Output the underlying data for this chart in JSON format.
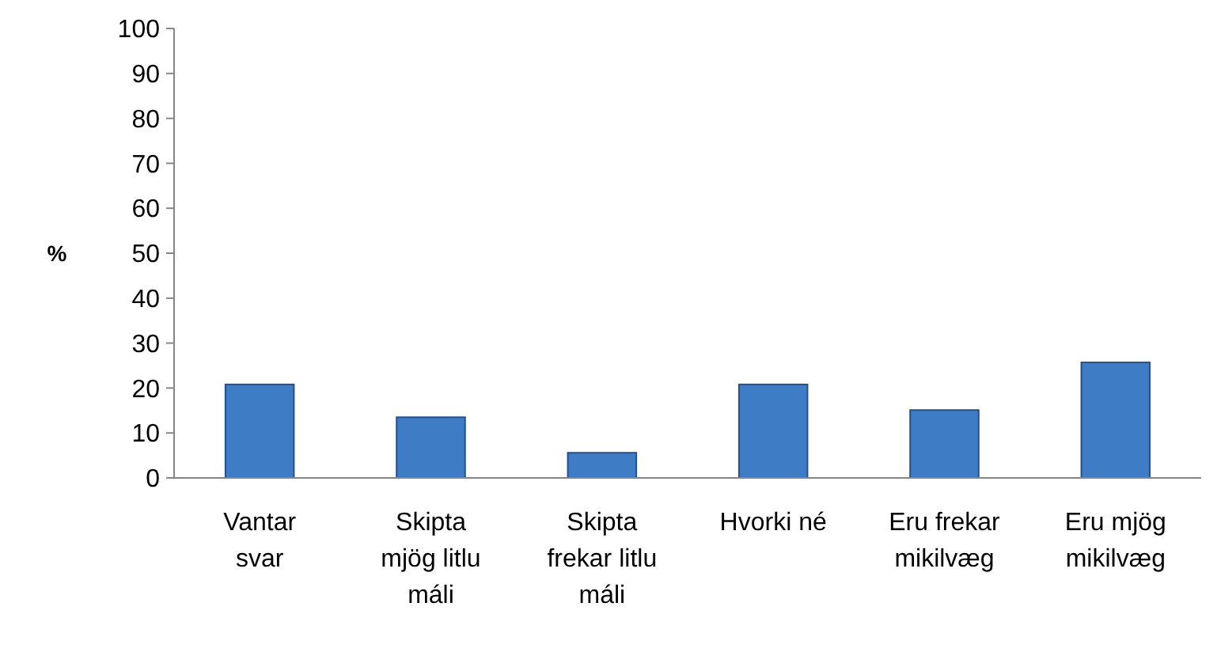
{
  "chart_data": {
    "type": "bar",
    "ylabel": "%",
    "categories": [
      "Vantar svar",
      "Skipta mjög litlu máli",
      "Skipta frekar litlu máli",
      "Hvorki né",
      "Eru frekar mikilvæg",
      "Eru mjög mikilvæg"
    ],
    "values": [
      20.8,
      13.5,
      5.6,
      20.8,
      15.1,
      25.7
    ],
    "color": "#3f7cc6",
    "ylim": [
      0,
      100
    ],
    "yticks": [
      0,
      10,
      20,
      30,
      40,
      50,
      60,
      70,
      80,
      90,
      100
    ],
    "grid": false
  }
}
